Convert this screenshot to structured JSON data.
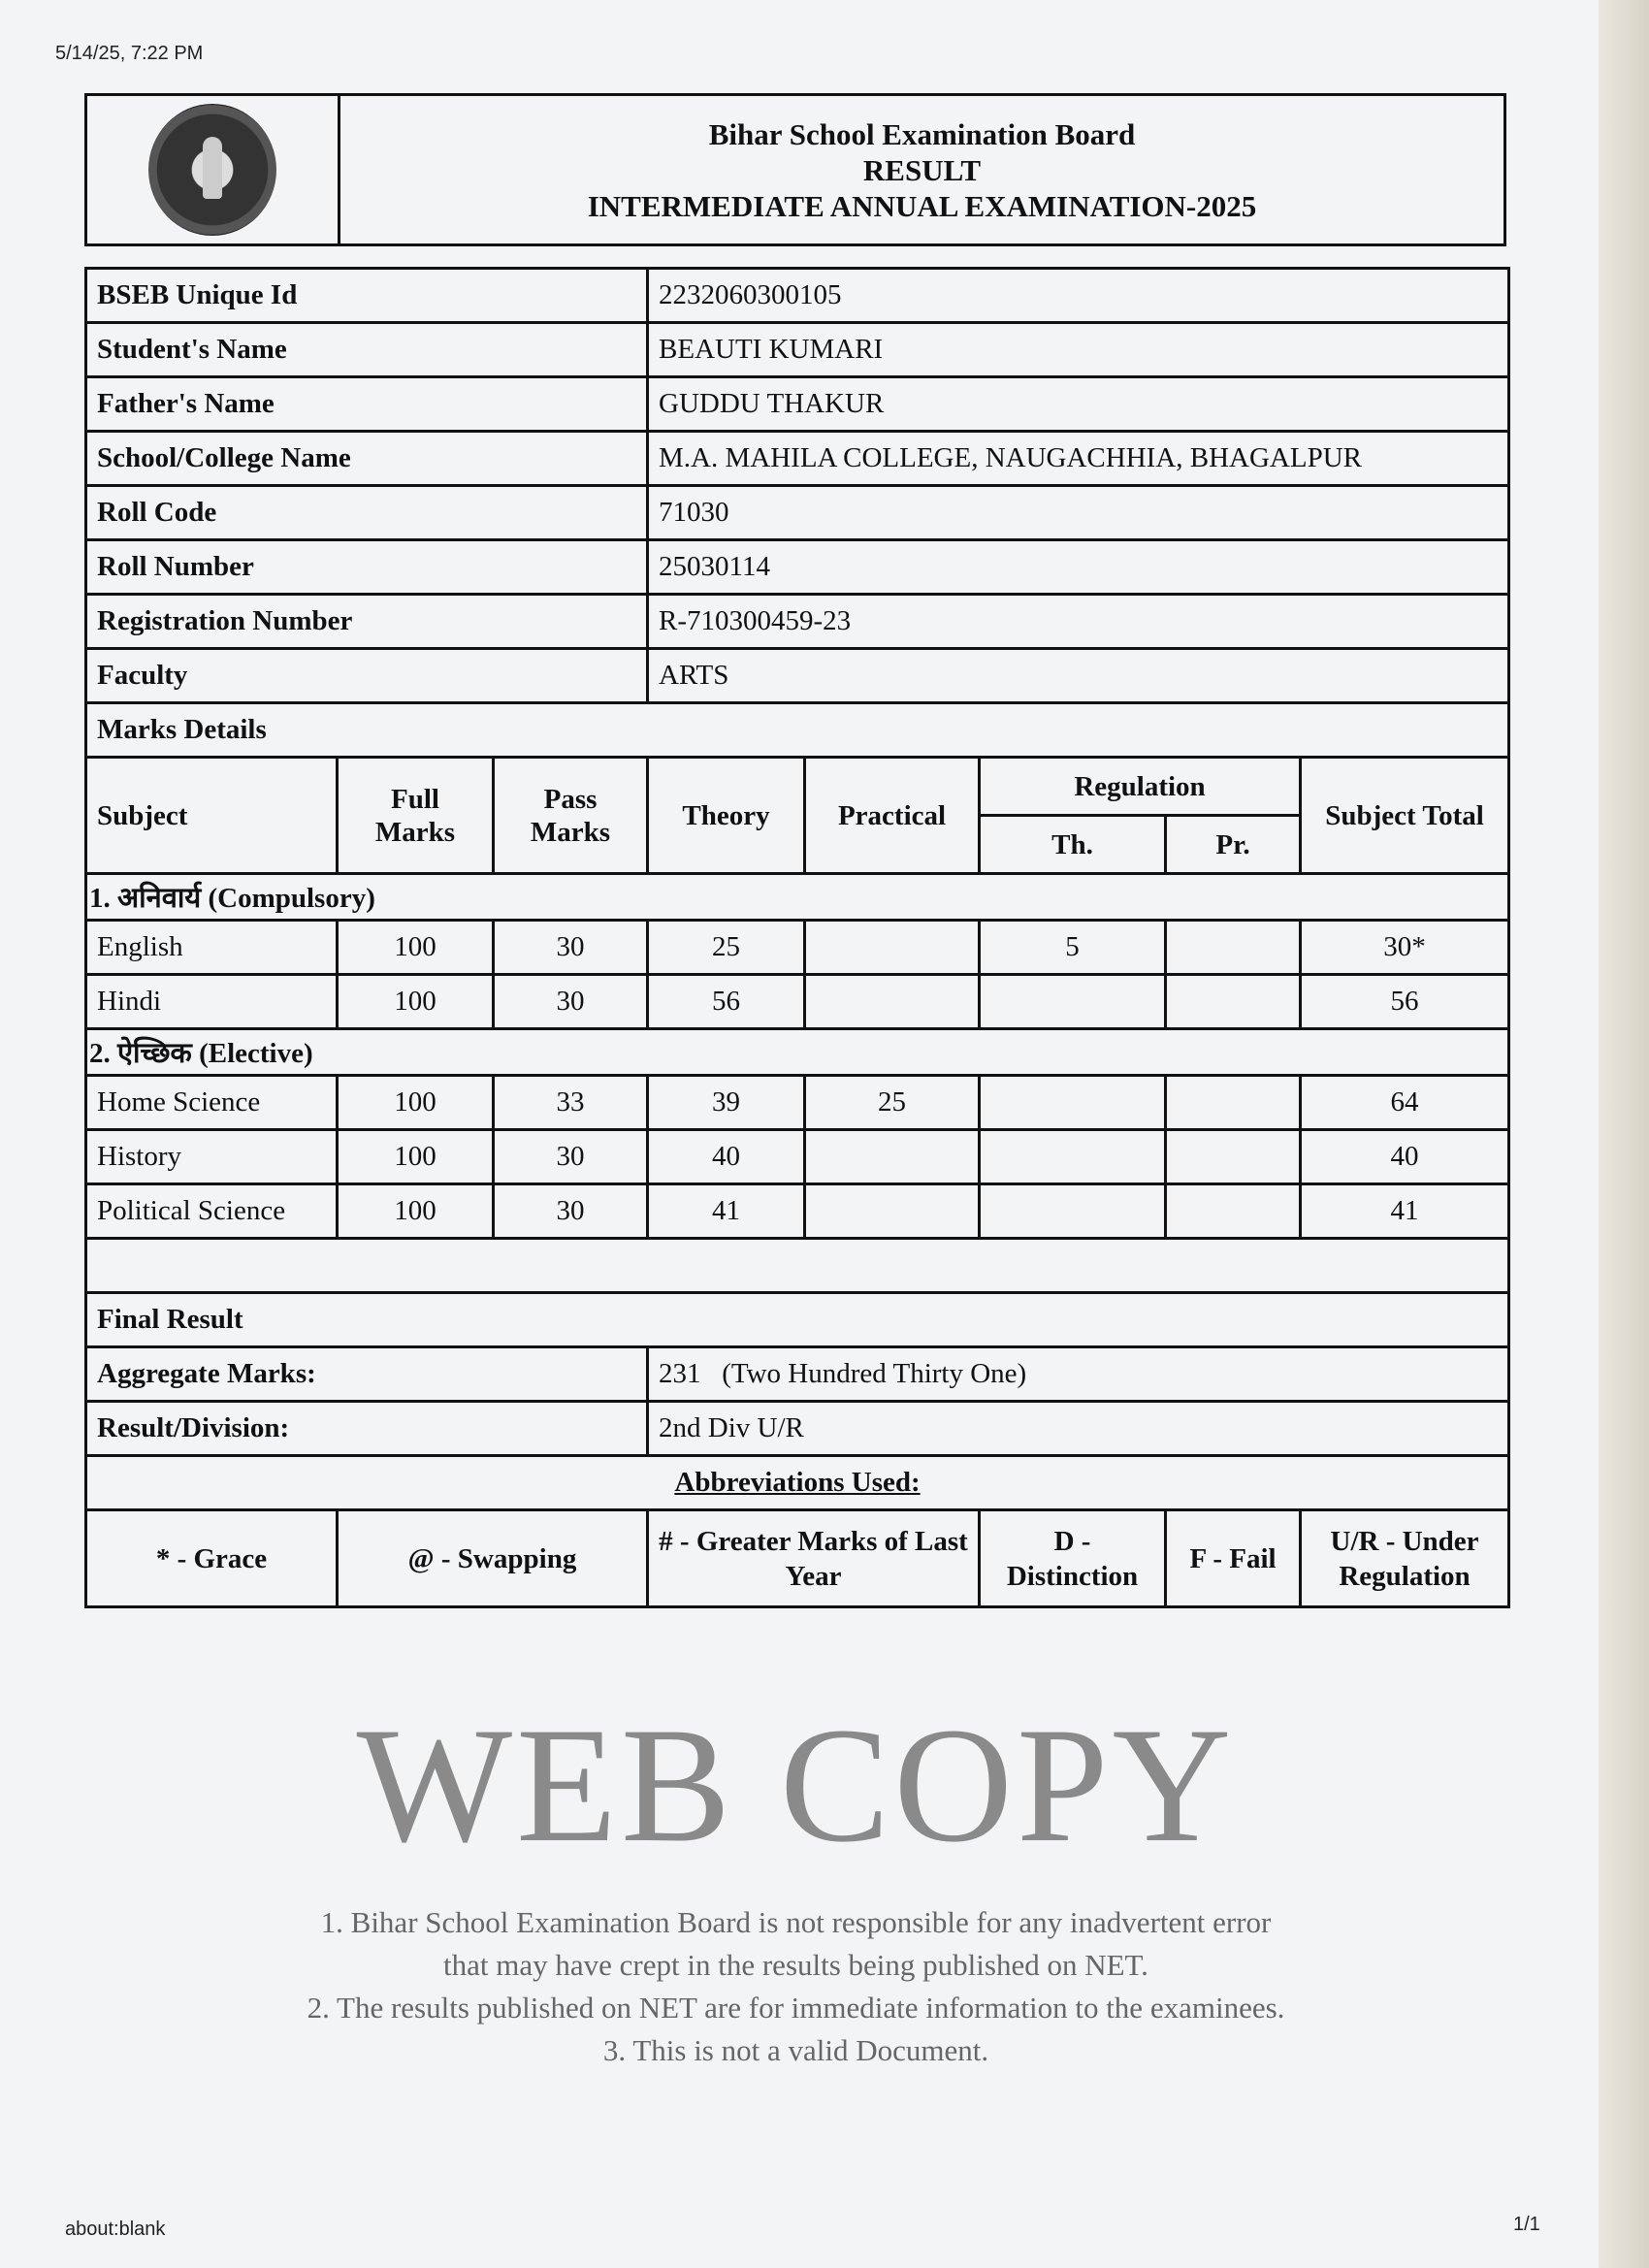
{
  "browser": {
    "timestamp": "5/14/25, 7:22 PM",
    "url": "about:blank",
    "page_count": "1/1"
  },
  "header": {
    "logo": "BSEB seal",
    "board": "Bihar School Examination Board",
    "result": "RESULT",
    "exam": "INTERMEDIATE ANNUAL EXAMINATION-2025"
  },
  "student": [
    {
      "label": "BSEB Unique Id",
      "value": "2232060300105"
    },
    {
      "label": "Student's Name",
      "value": "BEAUTI KUMARI"
    },
    {
      "label": "Father's Name",
      "value": "GUDDU THAKUR"
    },
    {
      "label": "School/College Name",
      "value": "M.A. MAHILA COLLEGE, NAUGACHHIA, BHAGALPUR"
    },
    {
      "label": "Roll Code",
      "value": "71030"
    },
    {
      "label": "Roll Number",
      "value": "25030114"
    },
    {
      "label": "Registration Number",
      "value": "R-710300459-23"
    },
    {
      "label": "Faculty",
      "value": "ARTS"
    }
  ],
  "marks": {
    "title": "Marks Details",
    "columns": {
      "subject": "Subject",
      "full": "Full Marks",
      "pass": "Pass Marks",
      "theory": "Theory",
      "practical": "Practical",
      "regulation": "Regulation",
      "reg_th": "Th.",
      "reg_pr": "Pr.",
      "total": "Subject Total"
    },
    "compulsory_label": "1. अनिवार्य (Compulsory)",
    "compulsory": [
      {
        "subject": "English",
        "full": "100",
        "pass": "30",
        "theory": "25",
        "practical": "",
        "reg_th": "5",
        "reg_pr": "",
        "total": "30*"
      },
      {
        "subject": "Hindi",
        "full": "100",
        "pass": "30",
        "theory": "56",
        "practical": "",
        "reg_th": "",
        "reg_pr": "",
        "total": "56"
      }
    ],
    "elective_label": "2. ऐच्छिक (Elective)",
    "elective": [
      {
        "subject": "Home Science",
        "full": "100",
        "pass": "33",
        "theory": "39",
        "practical": "25",
        "reg_th": "",
        "reg_pr": "",
        "total": "64"
      },
      {
        "subject": "History",
        "full": "100",
        "pass": "30",
        "theory": "40",
        "practical": "",
        "reg_th": "",
        "reg_pr": "",
        "total": "40"
      },
      {
        "subject": "Political Science",
        "full": "100",
        "pass": "30",
        "theory": "41",
        "practical": "",
        "reg_th": "",
        "reg_pr": "",
        "total": "41"
      }
    ]
  },
  "final": {
    "title": "Final Result",
    "aggregate_label": "Aggregate Marks:",
    "aggregate_value": "231",
    "aggregate_words": "(Two Hundred Thirty One)",
    "division_label": "Result/Division:",
    "division_value": "2nd Div U/R"
  },
  "abbreviations": {
    "title": "Abbreviations Used:",
    "items": [
      "* - Grace",
      "@ - Swapping",
      "# - Greater Marks of Last Year",
      "D - Distinction",
      "F - Fail",
      "U/R - Under Regulation"
    ]
  },
  "watermark": {
    "big": "WEB COPY",
    "lines": [
      "1. Bihar School Examination Board is not responsible for any inadvertent error",
      "that may have crept in the results being published on NET.",
      "2. The results published on NET are for immediate information to the examinees.",
      "3. This is not a valid Document."
    ]
  }
}
